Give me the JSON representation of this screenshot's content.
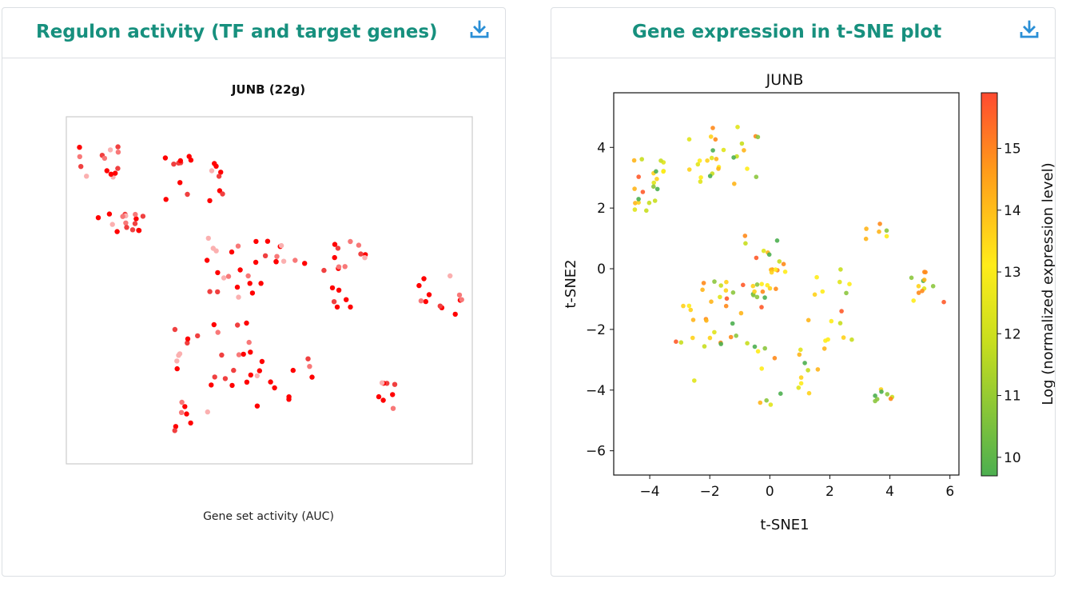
{
  "panels": {
    "regulon": {
      "title": "Regulon activity (TF and target genes)",
      "download_icon": "download-icon",
      "plot_title": "JUNB (22g)",
      "caption": "Gene set activity (AUC)"
    },
    "expression": {
      "title": "Gene expression in t-SNE plot",
      "download_icon": "download-icon",
      "plot_title": "JUNB"
    }
  },
  "colors": {
    "title_teal": "#17907e",
    "download_blue": "#2a8fd6",
    "auc_red": "#ff0000",
    "auc_light": "#ffd8d8"
  },
  "chart_data": [
    {
      "type": "scatter",
      "title": "JUNB (22g)",
      "xlabel": "Gene set activity (AUC)",
      "ylabel": "",
      "axes": "hidden",
      "color_scale": "white-to-red by AUC",
      "points_approx": 160
    },
    {
      "type": "scatter",
      "title": "JUNB",
      "xlabel": "t-SNE1",
      "ylabel": "t-SNE2",
      "xlim": [
        -5.2,
        6.3
      ],
      "ylim": [
        -6.8,
        5.8
      ],
      "xticks": [
        "−4",
        "−2",
        "0",
        "2",
        "4",
        "6"
      ],
      "yticks": [
        "−6",
        "−4",
        "−2",
        "0",
        "2",
        "4"
      ],
      "colorbar": {
        "label": "Log (normalized expression level)",
        "range": [
          9.7,
          15.9
        ],
        "ticks": [
          "10",
          "11",
          "12",
          "13",
          "14",
          "15"
        ],
        "colors": [
          "#4caf50",
          "#e0e000",
          "#ff4a30"
        ]
      },
      "points_approx": 170
    }
  ]
}
